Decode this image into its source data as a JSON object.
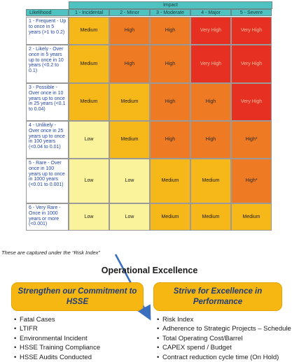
{
  "matrix": {
    "impact_header": "Impact",
    "likelihood_header": "Likelihood",
    "impact_levels": [
      "1 - Incidental",
      "2 - Minor",
      "3 - Moderate",
      "4 - Major",
      "5 - Severe"
    ],
    "likelihood_levels": [
      "1 - Frequent - Up to once in 5 years (>1 to 0.2)",
      "2 - Likely - Over once in 5 years up to once in 10 years (<0.2 to 0.1)",
      "3 - Possible - Over once in 10 years up to once in 25 years (<0.1 to 0.04)",
      "4 - Unlikely - Over once in 25 years up to once in 100 years (<0.04 to 0.01)",
      "5 - Rare - Over once in 100 years up to once in 1000 years (<0.01 to 0.001)",
      "6 - Very Rare - Once in 1000 years or more (<0.001)"
    ],
    "rows": [
      [
        "Medium",
        "High",
        "High",
        "Very High",
        "Very High"
      ],
      [
        "Medium",
        "High",
        "High",
        "Very High",
        "Very High"
      ],
      [
        "Medium",
        "Medium",
        "High",
        "High",
        "Very High"
      ],
      [
        "Low",
        "Medium",
        "High",
        "High",
        "High*"
      ],
      [
        "Low",
        "Low",
        "Medium",
        "Medium",
        "High*"
      ],
      [
        "Low",
        "Low",
        "Medium",
        "Medium",
        "Medium"
      ]
    ],
    "colors": {
      "Low": "#fbf29c",
      "Medium": "#f6b718",
      "High": "#ef7a24",
      "High*": "#ef7a24",
      "Very High": "#e63022"
    }
  },
  "note": "These are captured under the “Risk Index”",
  "section_title": "Operational Excellence",
  "left_box": {
    "title": "Strengthen our Commitment to HSSE",
    "items": [
      "Fatal Cases",
      "LTIFR",
      "Environmental Incident",
      "HSSE Training Compliance",
      "HSSE Audits Conducted"
    ]
  },
  "right_box": {
    "title": "Strive for Excellence in Performance",
    "items": [
      "Risk Index",
      "Adherence to Strategic Projects – Schedule",
      "Total Operating Cost/Barrel",
      "CAPEX spend / Budget",
      "Contract reduction cycle time (On Hold)"
    ]
  },
  "accent_colors": {
    "header": "#4fc3c1",
    "pill": "#f7b713",
    "arrow": "#3a6fc0",
    "pill_text": "#1f3d7a"
  }
}
